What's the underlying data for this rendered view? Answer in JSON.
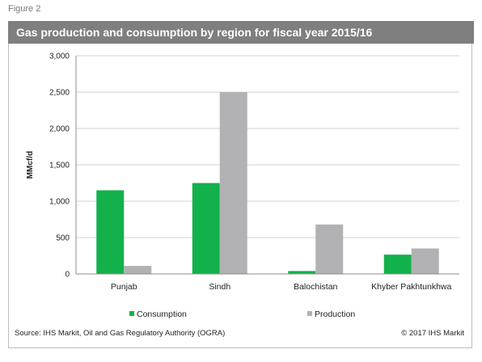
{
  "figure_label": "Figure 2",
  "source": "Source:  IHS Markit, Oil and Gas Regulatory Authority (OGRA)",
  "copyright": "© 2017  IHS Markit",
  "colors": {
    "consumption": "#12b14b",
    "production": "#b2b2b5",
    "title_bar": "#7f7f7f"
  },
  "chart_data": {
    "type": "bar",
    "title": "Gas production and consumption by region for fiscal year 2015/16",
    "xlabel": "",
    "ylabel": "MMcf/d",
    "ylim": [
      0,
      3000
    ],
    "yticks": [
      0,
      500,
      1000,
      1500,
      2000,
      2500,
      3000
    ],
    "ytick_labels": [
      "0",
      "500",
      "1,000",
      "1,500",
      "2,000",
      "2,500",
      "3,000"
    ],
    "grid": true,
    "legend_position": "bottom",
    "categories": [
      "Punjab",
      "Sindh",
      "Balochistan",
      "Khyber Pakhtunkhwa"
    ],
    "series": [
      {
        "name": "Consumption",
        "color": "#12b14b",
        "values": [
          1150,
          1250,
          40,
          265
        ]
      },
      {
        "name": "Production",
        "color": "#b2b2b5",
        "values": [
          110,
          2500,
          680,
          350
        ]
      }
    ]
  }
}
